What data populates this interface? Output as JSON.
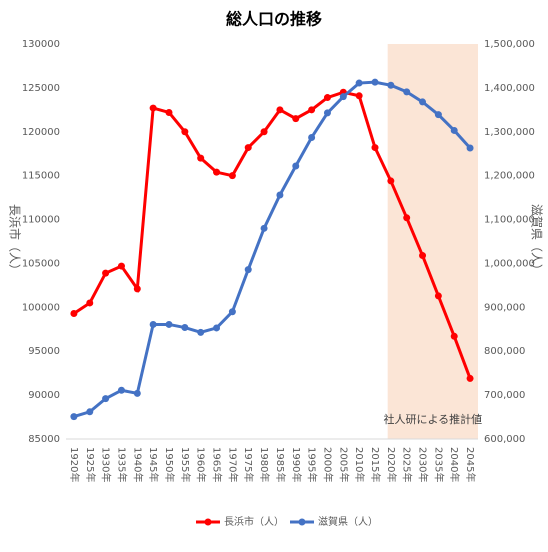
{
  "chart_data": {
    "type": "line",
    "title": "総人口の推移",
    "y_label": "長浜市（人）",
    "y2_label": "滋賀県（人）",
    "categories": [
      "1920年",
      "1925年",
      "1930年",
      "1935年",
      "1940年",
      "1945年",
      "1950年",
      "1955年",
      "1960年",
      "1965年",
      "1970年",
      "1975年",
      "1980年",
      "1985年",
      "1990年",
      "1995年",
      "2000年",
      "2005年",
      "2010年",
      "2015年",
      "2020年",
      "2025年",
      "2030年",
      "2035年",
      "2040年",
      "2045年"
    ],
    "series": [
      {
        "name": "長浜市（人）",
        "color": "#ff0000",
        "values": [
          99300,
          100500,
          103900,
          104700,
          102100,
          122700,
          122200,
          120000,
          117000,
          115400,
          115000,
          118200,
          120000,
          122500,
          121500,
          122500,
          123900,
          124500,
          124100,
          118200,
          114400,
          110200,
          105900,
          101300,
          96700,
          91900
        ]
      },
      {
        "name": "滋賀県（人）",
        "color": "#4472c4",
        "axis": "y2",
        "values": [
          651000,
          662000,
          692000,
          711000,
          704000,
          861000,
          861000,
          854000,
          843000,
          853000,
          890000,
          986000,
          1080000,
          1156000,
          1222000,
          1287000,
          1343000,
          1380000,
          1411000,
          1413000,
          1406000,
          1391000,
          1368000,
          1339000,
          1303000,
          1263000
        ]
      }
    ],
    "ylim": [
      85000,
      130000
    ],
    "yticks": [
      85000,
      90000,
      95000,
      100000,
      105000,
      110000,
      115000,
      120000,
      125000,
      130000
    ],
    "y2lim": [
      600000,
      1500000
    ],
    "y2ticks": [
      {
        "value": 600000,
        "label": "600,000"
      },
      {
        "value": 700000,
        "label": "700,000"
      },
      {
        "value": 800000,
        "label": "800,000"
      },
      {
        "value": 900000,
        "label": "900,000"
      },
      {
        "value": 1000000,
        "label": "1,000,000"
      },
      {
        "value": 1100000,
        "label": "1,100,000"
      },
      {
        "value": 1200000,
        "label": "1,200,000"
      },
      {
        "value": 1300000,
        "label": "1,300,000"
      },
      {
        "value": 1400000,
        "label": "1,400,000"
      },
      {
        "value": 1500000,
        "label": "1,500,000"
      }
    ],
    "shaded_region": {
      "from": "2020年",
      "label": "社人研による推計値",
      "color": "#fbe5d6"
    },
    "legend": "bottom"
  }
}
